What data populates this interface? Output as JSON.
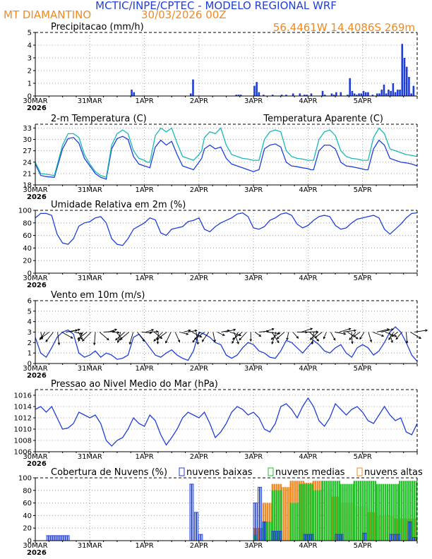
{
  "header": {
    "title": "MCTIC/INPE/CPTEC - MODELO REGIONAL WRF",
    "location": "MT DIAMANTINO",
    "run": "30/03/2026 00Z",
    "coords": "56.4461W 14.4086S 269m",
    "colors": {
      "title": "#1f3fd8",
      "location": "#f08a24"
    }
  },
  "x_axis": {
    "day_labels": [
      "30MAR",
      "31MAR",
      "1APR",
      "2APR",
      "3APR",
      "4APR",
      "5APR"
    ],
    "year_label": "2026",
    "day_count": 7.0
  },
  "chart_data": [
    {
      "type": "bar",
      "title": "Precipitacao (mm/h)",
      "ylim": [
        0,
        5
      ],
      "yticks": [
        0,
        1,
        2,
        3,
        4,
        5
      ],
      "color": "#1f3fd8",
      "hourly_index": [
        42,
        43,
        68,
        69,
        88,
        89,
        90,
        96,
        97,
        98,
        100,
        104,
        108,
        110,
        113,
        116,
        118,
        119,
        121,
        126,
        127,
        130,
        131,
        132,
        134,
        137,
        138,
        139,
        140,
        141,
        142,
        143,
        144,
        145,
        146,
        148,
        150,
        151,
        152,
        153,
        154,
        155,
        156,
        157,
        158,
        159,
        160,
        161,
        162,
        163,
        164,
        165,
        166
      ],
      "values": [
        0.5,
        0.3,
        0.2,
        1.3,
        0.1,
        0.1,
        0.1,
        0.8,
        1.1,
        0.3,
        0.1,
        0.1,
        0.1,
        0.1,
        0.2,
        0.2,
        0.1,
        0.1,
        0.2,
        0.4,
        0.1,
        0.2,
        0.1,
        0.3,
        0.3,
        0.1,
        1.4,
        0.4,
        0.2,
        0.1,
        0.2,
        0.2,
        0.4,
        0.3,
        0.3,
        0.1,
        0.2,
        0.2,
        0.5,
        0.9,
        0.2,
        0.5,
        0.4,
        1.0,
        0.3,
        0.5,
        0.5,
        4.1,
        3.0,
        2.3,
        1.5,
        0.2,
        0.8
      ]
    },
    {
      "type": "line",
      "title": "2-m Temperatura (C)",
      "title2": "Temperatura Aparente (C)",
      "ylim": [
        18,
        34
      ],
      "yticks": [
        18,
        21,
        24,
        27,
        30,
        33
      ],
      "series": [
        {
          "name": "2-m Temperatura (C)",
          "color": "#1f3fd8",
          "x": [
            0,
            0.1,
            0.2,
            0.35,
            0.5,
            0.6,
            0.7,
            0.8,
            0.9,
            1.0,
            1.05,
            1.1,
            1.2,
            1.3,
            1.4,
            1.5,
            1.6,
            1.7,
            1.8,
            1.9,
            2.0,
            2.05,
            2.1,
            2.2,
            2.3,
            2.4,
            2.5,
            2.6,
            2.7,
            2.8,
            2.9,
            3.0,
            3.05,
            3.1,
            3.2,
            3.3,
            3.4,
            3.5,
            3.6,
            3.7,
            3.8,
            3.9,
            4.0,
            4.05,
            4.1,
            4.2,
            4.3,
            4.4,
            4.5,
            4.6,
            4.7,
            4.8,
            4.9,
            5.0,
            5.05,
            5.1,
            5.2,
            5.3,
            5.4,
            5.5,
            5.6,
            5.7,
            5.8,
            5.9,
            6.0,
            6.05,
            6.1,
            6.2,
            6.3,
            6.4,
            6.5,
            6.6,
            6.7,
            6.8,
            6.9,
            7.0
          ],
          "y": [
            23.5,
            20.5,
            20.2,
            20.0,
            27.5,
            30.2,
            30.5,
            29.0,
            25.0,
            23.0,
            22.0,
            21.0,
            20.0,
            19.5,
            27.5,
            30.2,
            30.8,
            30.0,
            25.5,
            23.5,
            23.0,
            22.8,
            22.5,
            28.0,
            29.8,
            28.5,
            29.5,
            26.0,
            23.0,
            22.5,
            22.0,
            24.0,
            25.0,
            27.5,
            28.5,
            27.5,
            28.0,
            25.0,
            23.5,
            23.0,
            22.5,
            22.0,
            21.5,
            21.8,
            22.0,
            27.5,
            28.5,
            28.8,
            28.0,
            24.0,
            23.0,
            22.8,
            22.5,
            22.3,
            22.0,
            22.0,
            27.0,
            28.5,
            28.5,
            27.5,
            24.0,
            23.0,
            22.8,
            22.5,
            22.2,
            22.0,
            22.0,
            27.5,
            29.8,
            28.5,
            25.0,
            24.5,
            24.0,
            23.8,
            23.5,
            23.0
          ]
        },
        {
          "name": "Temperatura Aparente (C)",
          "color": "#18b8b8",
          "x": [
            0,
            0.1,
            0.2,
            0.35,
            0.5,
            0.6,
            0.7,
            0.8,
            0.9,
            1.0,
            1.05,
            1.1,
            1.2,
            1.3,
            1.4,
            1.5,
            1.6,
            1.7,
            1.8,
            1.9,
            2.0,
            2.05,
            2.1,
            2.2,
            2.3,
            2.4,
            2.5,
            2.6,
            2.7,
            2.8,
            2.9,
            3.0,
            3.05,
            3.1,
            3.2,
            3.3,
            3.4,
            3.5,
            3.6,
            3.7,
            3.8,
            3.9,
            4.0,
            4.05,
            4.1,
            4.2,
            4.3,
            4.4,
            4.5,
            4.6,
            4.7,
            4.8,
            4.9,
            5.0,
            5.05,
            5.1,
            5.2,
            5.3,
            5.4,
            5.5,
            5.6,
            5.7,
            5.8,
            5.9,
            6.0,
            6.05,
            6.1,
            6.2,
            6.3,
            6.4,
            6.5,
            6.6,
            6.7,
            6.8,
            6.9,
            7.0
          ],
          "y": [
            24.0,
            21.0,
            20.8,
            20.5,
            28.5,
            31.5,
            31.5,
            30.5,
            26.0,
            23.5,
            22.5,
            21.5,
            20.5,
            20.0,
            28.5,
            31.5,
            32.5,
            31.5,
            27.0,
            25.0,
            24.5,
            24.0,
            24.0,
            31.0,
            33.0,
            32.0,
            33.0,
            29.0,
            25.5,
            25.0,
            24.5,
            26.0,
            27.0,
            30.5,
            32.0,
            31.5,
            33.0,
            28.5,
            26.0,
            25.5,
            25.0,
            24.8,
            24.5,
            24.5,
            24.5,
            30.0,
            32.0,
            32.5,
            32.0,
            27.0,
            25.5,
            25.0,
            24.8,
            24.5,
            24.5,
            24.5,
            30.0,
            32.0,
            32.5,
            31.0,
            27.0,
            25.5,
            25.0,
            24.8,
            24.5,
            24.5,
            24.5,
            30.5,
            33.0,
            31.5,
            27.5,
            27.0,
            26.5,
            26.0,
            25.8,
            25.5
          ]
        }
      ]
    },
    {
      "type": "line",
      "title": "Umidade Relativa em 2m (%)",
      "ylim": [
        0,
        100
      ],
      "yticks": [
        0,
        20,
        40,
        60,
        80,
        100
      ],
      "series": [
        {
          "name": "Umidade Relativa em 2m (%)",
          "color": "#1f3fd8",
          "x": [
            0,
            0.1,
            0.2,
            0.3,
            0.4,
            0.5,
            0.6,
            0.7,
            0.8,
            0.9,
            1.0,
            1.1,
            1.2,
            1.3,
            1.4,
            1.5,
            1.6,
            1.7,
            1.8,
            1.9,
            2.0,
            2.1,
            2.2,
            2.3,
            2.4,
            2.5,
            2.6,
            2.7,
            2.8,
            2.9,
            3.0,
            3.1,
            3.2,
            3.3,
            3.4,
            3.5,
            3.6,
            3.7,
            3.8,
            3.9,
            4.0,
            4.1,
            4.2,
            4.3,
            4.4,
            4.5,
            4.6,
            4.7,
            4.8,
            4.9,
            5.0,
            5.1,
            5.2,
            5.3,
            5.4,
            5.5,
            5.6,
            5.7,
            5.8,
            5.9,
            6.0,
            6.1,
            6.2,
            6.3,
            6.4,
            6.5,
            6.6,
            6.7,
            6.8,
            6.9,
            7.0
          ],
          "y": [
            88,
            95,
            95,
            92,
            62,
            48,
            46,
            55,
            75,
            80,
            82,
            88,
            90,
            80,
            55,
            46,
            44,
            55,
            70,
            75,
            80,
            88,
            85,
            64,
            60,
            70,
            72,
            74,
            82,
            84,
            88,
            70,
            66,
            74,
            80,
            84,
            88,
            94,
            96,
            90,
            72,
            70,
            74,
            84,
            88,
            94,
            96,
            92,
            78,
            72,
            76,
            84,
            90,
            92,
            90,
            76,
            70,
            72,
            80,
            86,
            88,
            90,
            92,
            88,
            70,
            62,
            70,
            78,
            88,
            95,
            96
          ]
        }
      ]
    },
    {
      "type": "line",
      "title": "Vento em 10m (m/s)",
      "ylim": [
        0,
        6
      ],
      "yticks": [
        0,
        1,
        2,
        3,
        4,
        5,
        6
      ],
      "series": [
        {
          "name": "Vento em 10m (m/s)",
          "color": "#1f3fd8",
          "x": [
            0,
            0.1,
            0.2,
            0.3,
            0.4,
            0.5,
            0.6,
            0.7,
            0.8,
            0.9,
            1.0,
            1.1,
            1.2,
            1.3,
            1.4,
            1.5,
            1.6,
            1.7,
            1.8,
            1.9,
            2.0,
            2.1,
            2.2,
            2.3,
            2.4,
            2.5,
            2.6,
            2.7,
            2.8,
            2.9,
            3.0,
            3.1,
            3.2,
            3.3,
            3.4,
            3.5,
            3.6,
            3.7,
            3.8,
            3.9,
            4.0,
            4.1,
            4.2,
            4.3,
            4.4,
            4.5,
            4.6,
            4.7,
            4.8,
            4.9,
            5.0,
            5.1,
            5.2,
            5.3,
            5.4,
            5.5,
            5.6,
            5.7,
            5.8,
            5.9,
            6.0,
            6.1,
            6.2,
            6.3,
            6.4,
            6.5,
            6.6,
            6.7,
            6.8,
            6.9,
            7.0
          ],
          "y": [
            2.5,
            1.0,
            0.6,
            1.5,
            2.5,
            3.0,
            3.2,
            2.8,
            1.0,
            0.6,
            0.8,
            1.2,
            0.6,
            1.0,
            0.8,
            0.4,
            0.5,
            0.8,
            2.5,
            2.8,
            2.2,
            1.5,
            0.8,
            0.6,
            1.0,
            1.3,
            0.8,
            0.5,
            0.3,
            1.2,
            3.0,
            2.8,
            2.5,
            2.0,
            1.8,
            0.8,
            0.5,
            0.8,
            1.5,
            2.0,
            1.8,
            1.2,
            1.0,
            0.6,
            0.5,
            1.2,
            2.2,
            2.0,
            1.5,
            1.0,
            1.6,
            2.2,
            1.8,
            1.2,
            1.0,
            1.5,
            1.8,
            1.0,
            0.6,
            1.5,
            1.8,
            1.5,
            0.8,
            1.2,
            2.0,
            3.0,
            3.5,
            3.0,
            2.0,
            0.8,
            0.2
          ]
        }
      ]
    },
    {
      "type": "line",
      "title": "Pressao ao Nivel Medio do Mar (hPa)",
      "ylim": [
        1006,
        1017
      ],
      "yticks": [
        1006,
        1008,
        1010,
        1012,
        1014,
        1016
      ],
      "series": [
        {
          "name": "Pressao ao Nivel Medio do Mar (hPa)",
          "color": "#1f3fd8",
          "x": [
            0,
            0.1,
            0.2,
            0.3,
            0.4,
            0.5,
            0.6,
            0.7,
            0.8,
            0.9,
            1.0,
            1.1,
            1.2,
            1.3,
            1.4,
            1.5,
            1.6,
            1.7,
            1.8,
            1.9,
            2.0,
            2.1,
            2.2,
            2.3,
            2.4,
            2.5,
            2.6,
            2.7,
            2.8,
            2.9,
            3.0,
            3.1,
            3.2,
            3.3,
            3.4,
            3.5,
            3.6,
            3.7,
            3.8,
            3.9,
            4.0,
            4.1,
            4.2,
            4.3,
            4.4,
            4.5,
            4.6,
            4.7,
            4.8,
            4.9,
            5.0,
            5.1,
            5.2,
            5.3,
            5.4,
            5.5,
            5.6,
            5.7,
            5.8,
            5.9,
            6.0,
            6.1,
            6.2,
            6.3,
            6.4,
            6.5,
            6.6,
            6.7,
            6.8,
            6.9,
            7.0
          ],
          "y": [
            1013.5,
            1014.0,
            1013.0,
            1014.0,
            1012.0,
            1010.0,
            1010.2,
            1011.0,
            1013.0,
            1012.5,
            1012.0,
            1012.5,
            1011.0,
            1008.0,
            1007.0,
            1008.0,
            1008.5,
            1010.0,
            1012.0,
            1011.0,
            1010.5,
            1012.5,
            1011.5,
            1009.0,
            1007.2,
            1008.5,
            1010.0,
            1012.0,
            1013.0,
            1012.5,
            1012.0,
            1013.0,
            1011.0,
            1008.5,
            1009.5,
            1011.0,
            1013.0,
            1014.0,
            1013.5,
            1012.5,
            1013.0,
            1012.0,
            1010.0,
            1009.5,
            1011.0,
            1014.0,
            1014.5,
            1013.5,
            1012.0,
            1014.0,
            1015.5,
            1014.0,
            1011.5,
            1010.5,
            1012.0,
            1014.5,
            1013.5,
            1012.5,
            1013.5,
            1014.0,
            1013.0,
            1011.5,
            1011.0,
            1012.5,
            1014.0,
            1012.5,
            1011.5,
            1012.0,
            1009.5,
            1009.0,
            1011.0
          ]
        }
      ]
    },
    {
      "type": "bar",
      "title": "Cobertura de Nuvens (%)",
      "ylim": [
        0,
        100
      ],
      "yticks": [
        0,
        20,
        40,
        60,
        80,
        100
      ],
      "legend": [
        {
          "label": "nuvens baixas",
          "color": "#1f3fd8"
        },
        {
          "label": "nuvens medias",
          "color": "#22c02a"
        },
        {
          "label": "nuvens altas",
          "color": "#f08a24"
        }
      ],
      "low_segments": [
        [
          0,
          5,
          0
        ],
        [
          5,
          15,
          8
        ],
        [
          15,
          20,
          0
        ],
        [
          68,
          70,
          90
        ],
        [
          70,
          72,
          45
        ],
        [
          72,
          74,
          10
        ],
        [
          96,
          98,
          60
        ],
        [
          98,
          100,
          85
        ],
        [
          100,
          102,
          30
        ],
        [
          104,
          108,
          15
        ],
        [
          118,
          122,
          10
        ],
        [
          132,
          135,
          10
        ],
        [
          144,
          146,
          12
        ],
        [
          156,
          160,
          10
        ],
        [
          164,
          166,
          30
        ],
        [
          166,
          168,
          5
        ]
      ],
      "mid_segments": [
        [
          96,
          98,
          10
        ],
        [
          100,
          104,
          30
        ],
        [
          104,
          108,
          80
        ],
        [
          112,
          116,
          60
        ],
        [
          116,
          122,
          90
        ],
        [
          122,
          126,
          80
        ],
        [
          126,
          134,
          95
        ],
        [
          134,
          140,
          90
        ],
        [
          140,
          150,
          95
        ],
        [
          150,
          160,
          90
        ],
        [
          160,
          168,
          95
        ]
      ],
      "high_segments": [
        [
          96,
          100,
          20
        ],
        [
          100,
          104,
          60
        ],
        [
          104,
          108,
          90
        ],
        [
          108,
          112,
          85
        ],
        [
          112,
          118,
          95
        ],
        [
          118,
          122,
          92
        ],
        [
          122,
          126,
          95
        ],
        [
          126,
          130,
          80
        ],
        [
          130,
          134,
          70
        ],
        [
          134,
          140,
          60
        ],
        [
          140,
          146,
          55
        ],
        [
          146,
          150,
          45
        ],
        [
          150,
          158,
          40
        ],
        [
          158,
          168,
          35
        ]
      ]
    }
  ]
}
